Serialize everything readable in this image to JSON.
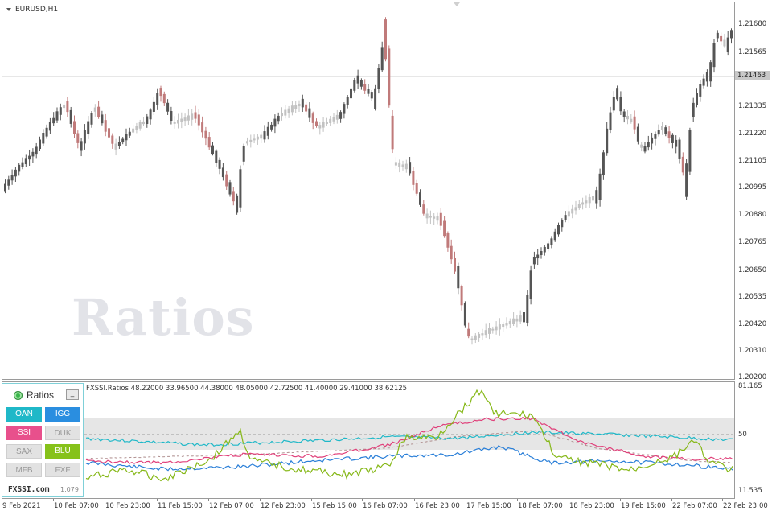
{
  "symbol": "EURUSD,H1",
  "watermark": "Ratios",
  "current_price": "1.21463",
  "price_axis": [
    "1.21680",
    "1.21565",
    "1.21450",
    "1.21335",
    "1.21220",
    "1.21105",
    "1.20995",
    "1.20880",
    "1.20765",
    "1.20650",
    "1.20535",
    "1.20420",
    "1.20310",
    "1.20200"
  ],
  "indicator": {
    "title": "FXSSI.Ratios 48.22000 33.96500 44.38000 48.05000 42.72500 41.40000 29.41000 38.62125",
    "axis": [
      "81.165",
      "50",
      "11.535"
    ]
  },
  "time_axis": [
    "9 Feb 2021",
    "10 Feb 07:00",
    "10 Feb 23:00",
    "11 Feb 15:00",
    "12 Feb 07:00",
    "12 Feb 23:00",
    "15 Feb 15:00",
    "16 Feb 07:00",
    "16 Feb 23:00",
    "17 Feb 15:00",
    "18 Feb 07:00",
    "18 Feb 23:00",
    "19 Feb 15:00",
    "22 Feb 07:00",
    "22 Feb 23:00"
  ],
  "ratios_panel": {
    "title": "Ratios",
    "minimize": "_",
    "buttons": [
      {
        "label": "OAN",
        "active": true,
        "color": "#1fb8c8"
      },
      {
        "label": "IGG",
        "active": true,
        "color": "#2a8ee0"
      },
      {
        "label": "SSI",
        "active": true,
        "color": "#e8508c"
      },
      {
        "label": "DUK",
        "active": false,
        "color": "#e2e2e2"
      },
      {
        "label": "SAX",
        "active": false,
        "color": "#e2e2e2"
      },
      {
        "label": "BLU",
        "active": true,
        "color": "#86c21a"
      },
      {
        "label": "MFB",
        "active": false,
        "color": "#e2e2e2"
      },
      {
        "label": "FXF",
        "active": false,
        "color": "#e2e2e2"
      }
    ],
    "brand": "FXSSI.com",
    "version": "1.079"
  },
  "colors": {
    "bull_candle": "#555555",
    "bear_candle": "#c07a7a",
    "neutral_candle": "#c2c2c2",
    "oan_line": "#1fb8c8",
    "igg_line": "#2a7fd8",
    "ssi_line": "#e0407a",
    "blu_line": "#86b818",
    "band_fill": "#e6e6e6"
  }
}
